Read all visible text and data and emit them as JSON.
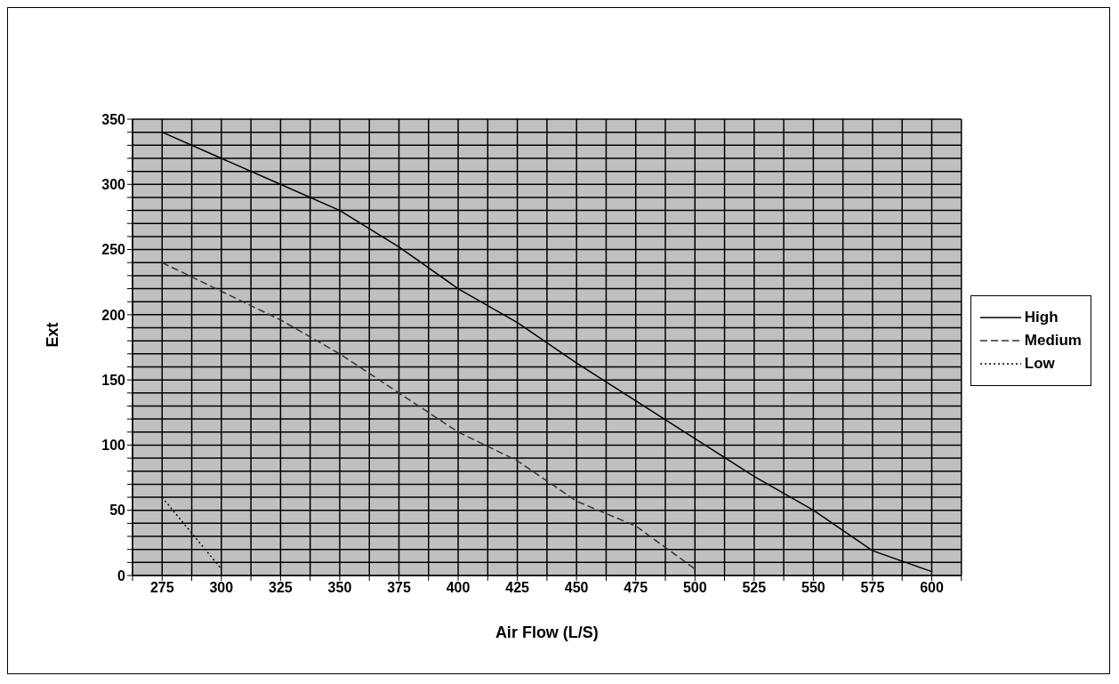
{
  "chart_data": {
    "type": "line",
    "xlabel": "Air Flow (L/S)",
    "ylabel": "Ext",
    "x": [
      275,
      300,
      325,
      350,
      375,
      400,
      425,
      450,
      475,
      500,
      525,
      550,
      575,
      600
    ],
    "series": [
      {
        "name": "High",
        "color": "#000000",
        "line_style": "solid",
        "values": [
          340,
          320,
          300,
          280,
          252,
          220,
          194,
          163,
          134,
          105,
          76,
          50,
          19,
          3
        ]
      },
      {
        "name": "Medium",
        "color": "#333333",
        "line_style": "dashed",
        "values": [
          240,
          218,
          196,
          170,
          140,
          110,
          88,
          57,
          38,
          5,
          null,
          null,
          null,
          null
        ]
      },
      {
        "name": "Low",
        "color": "#000000",
        "line_style": "dotted",
        "values": [
          60,
          5,
          null,
          null,
          null,
          null,
          null,
          null,
          null,
          null,
          null,
          null,
          null,
          null
        ]
      }
    ],
    "xlim": [
      262.5,
      612.5
    ],
    "xticks": [
      {
        "value": 262.5,
        "label": null
      },
      275,
      {
        "value": 287.5,
        "label": null
      },
      300,
      {
        "value": 312.5,
        "label": null
      },
      325,
      {
        "value": 337.5,
        "label": null
      },
      350,
      {
        "value": 362.5,
        "label": null
      },
      375,
      {
        "value": 387.5,
        "label": null
      },
      400,
      {
        "value": 412.5,
        "label": null
      },
      425,
      {
        "value": 437.5,
        "label": null
      },
      450,
      {
        "value": 462.5,
        "label": null
      },
      475,
      {
        "value": 487.5,
        "label": null
      },
      500,
      {
        "value": 512.5,
        "label": null
      },
      525,
      {
        "value": 537.5,
        "label": null
      },
      550,
      {
        "value": 562.5,
        "label": null
      },
      575,
      {
        "value": 587.5,
        "label": null
      },
      600,
      {
        "value": 612.5,
        "label": null
      }
    ],
    "ylim": [
      0,
      350
    ],
    "yticks": [
      0,
      {
        "value": 10,
        "label": null
      },
      {
        "value": 20,
        "label": null
      },
      {
        "value": 30,
        "label": null
      },
      {
        "value": 40,
        "label": null
      },
      50,
      {
        "value": 60,
        "label": null
      },
      {
        "value": 70,
        "label": null
      },
      {
        "value": 80,
        "label": null
      },
      {
        "value": 90,
        "label": null
      },
      100,
      {
        "value": 110,
        "label": null
      },
      {
        "value": 120,
        "label": null
      },
      {
        "value": 130,
        "label": null
      },
      {
        "value": 140,
        "label": null
      },
      150,
      {
        "value": 160,
        "label": null
      },
      {
        "value": 170,
        "label": null
      },
      {
        "value": 180,
        "label": null
      },
      {
        "value": 190,
        "label": null
      },
      200,
      {
        "value": 210,
        "label": null
      },
      {
        "value": 220,
        "label": null
      },
      {
        "value": 230,
        "label": null
      },
      {
        "value": 240,
        "label": null
      },
      250,
      {
        "value": 260,
        "label": null
      },
      {
        "value": 270,
        "label": null
      },
      {
        "value": 280,
        "label": null
      },
      {
        "value": 290,
        "label": null
      },
      300,
      {
        "value": 310,
        "label": null
      },
      {
        "value": 320,
        "label": null
      },
      {
        "value": 330,
        "label": null
      },
      {
        "value": 340,
        "label": null
      },
      350
    ],
    "grid": true,
    "legend": "right",
    "marker": "none"
  }
}
